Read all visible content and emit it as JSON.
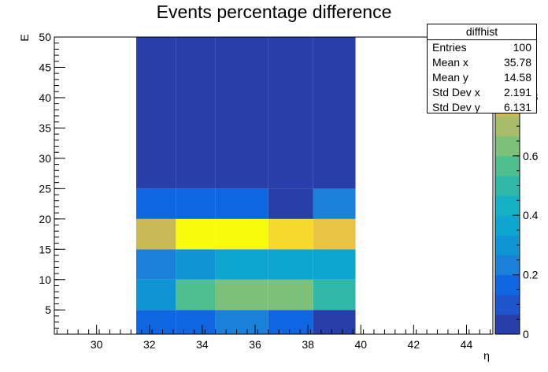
{
  "chart_data": {
    "type": "heatmap",
    "title": "Events percentage difference",
    "xlabel": "η",
    "ylabel": "E",
    "xlim": [
      28.4,
      45.0
    ],
    "ylim": [
      1,
      50
    ],
    "x_ticks": [
      30,
      32,
      34,
      36,
      38,
      40,
      42,
      44
    ],
    "y_ticks": [
      5,
      10,
      15,
      20,
      25,
      30,
      35,
      40,
      45,
      50
    ],
    "x_edges": [
      31.5,
      33.0,
      34.5,
      36.5,
      38.2,
      39.8
    ],
    "y_edges": [
      1.0,
      5.0,
      10.0,
      15.0,
      20.0,
      25.0,
      50.0
    ],
    "cells": [
      [
        0.17,
        0.19,
        0.2,
        0.17,
        0.06
      ],
      [
        0.28,
        0.57,
        0.65,
        0.65,
        0.48
      ],
      [
        0.22,
        0.3,
        0.38,
        0.38,
        0.38
      ],
      [
        0.74,
        1.0,
        1.0,
        0.93,
        0.85
      ],
      [
        0.16,
        0.16,
        0.16,
        0.05,
        0.2
      ],
      [
        0.05,
        0.05,
        0.05,
        0.05,
        0.05
      ]
    ],
    "z_range": [
      0,
      1
    ],
    "z_ticks": [
      "0",
      "0.2",
      "0.4",
      "0.6",
      "0.8"
    ],
    "palette": [
      "#283ea8",
      "#1f55cc",
      "#1066e0",
      "#1a80d8",
      "#0f94d4",
      "#0ea5d0",
      "#16b0c4",
      "#2fb8a8",
      "#4fbf90",
      "#7cc07a",
      "#a7bd6a",
      "#cbb958",
      "#eac244",
      "#f6d92c",
      "#f9fb0e"
    ]
  },
  "stats": {
    "name": "diffhist",
    "rows": [
      {
        "label": "Entries",
        "value": "100"
      },
      {
        "label": "Mean x",
        "value": "35.78"
      },
      {
        "label": "Mean y",
        "value": "14.58"
      },
      {
        "label": "Std Dev x",
        "value": "2.191"
      },
      {
        "label": "Std Dev y",
        "value": "6.131"
      }
    ]
  }
}
